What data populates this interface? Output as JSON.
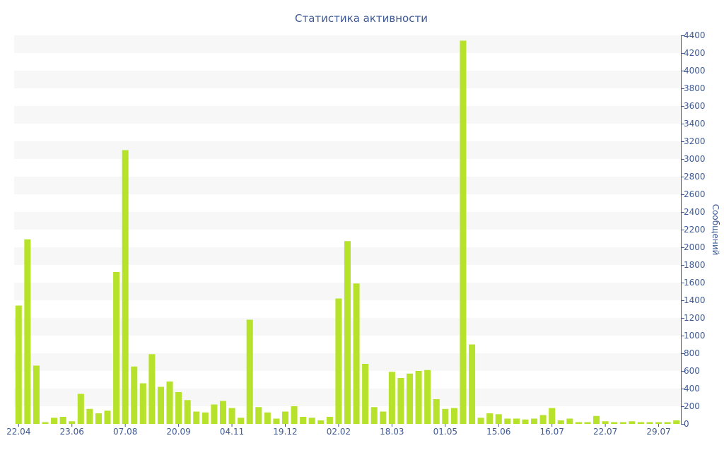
{
  "chart_data": {
    "type": "bar",
    "title": "Статистика активности",
    "ylabel": "Сообщений",
    "xlabel": "",
    "ylim": [
      0,
      4400
    ],
    "y_ticks": [
      0,
      200,
      400,
      600,
      800,
      1000,
      1200,
      1400,
      1600,
      1800,
      2000,
      2200,
      2400,
      2600,
      2800,
      3000,
      3200,
      3400,
      3600,
      3800,
      4000,
      4200,
      4400
    ],
    "y_axis_side": "right",
    "grid": "alternating horizontal bands",
    "bar_color": "#b7e22b",
    "text_color": "#3e5a94",
    "x_tick_labels": [
      {
        "label": "22.04",
        "index": 0
      },
      {
        "label": "23.06",
        "index": 6
      },
      {
        "label": "07.08",
        "index": 12
      },
      {
        "label": "20.09",
        "index": 18
      },
      {
        "label": "04.11",
        "index": 24
      },
      {
        "label": "19.12",
        "index": 30
      },
      {
        "label": "02.02",
        "index": 36
      },
      {
        "label": "18.03",
        "index": 42
      },
      {
        "label": "01.05",
        "index": 48
      },
      {
        "label": "15.06",
        "index": 54
      },
      {
        "label": "16.07",
        "index": 60
      },
      {
        "label": "22.07",
        "index": 66
      },
      {
        "label": "29.07",
        "index": 72
      }
    ],
    "values": [
      1340,
      2090,
      660,
      20,
      70,
      80,
      30,
      340,
      170,
      120,
      150,
      1720,
      3100,
      650,
      460,
      790,
      420,
      480,
      360,
      270,
      140,
      130,
      220,
      260,
      180,
      70,
      1180,
      190,
      130,
      60,
      140,
      200,
      80,
      70,
      40,
      80,
      1420,
      2070,
      1590,
      680,
      190,
      140,
      590,
      520,
      570,
      600,
      610,
      280,
      170,
      180,
      4340,
      900,
      70,
      120,
      110,
      60,
      60,
      50,
      60,
      100,
      180,
      40,
      60,
      20,
      20,
      90,
      30,
      20,
      20,
      30,
      20,
      20,
      20,
      20,
      40
    ]
  }
}
